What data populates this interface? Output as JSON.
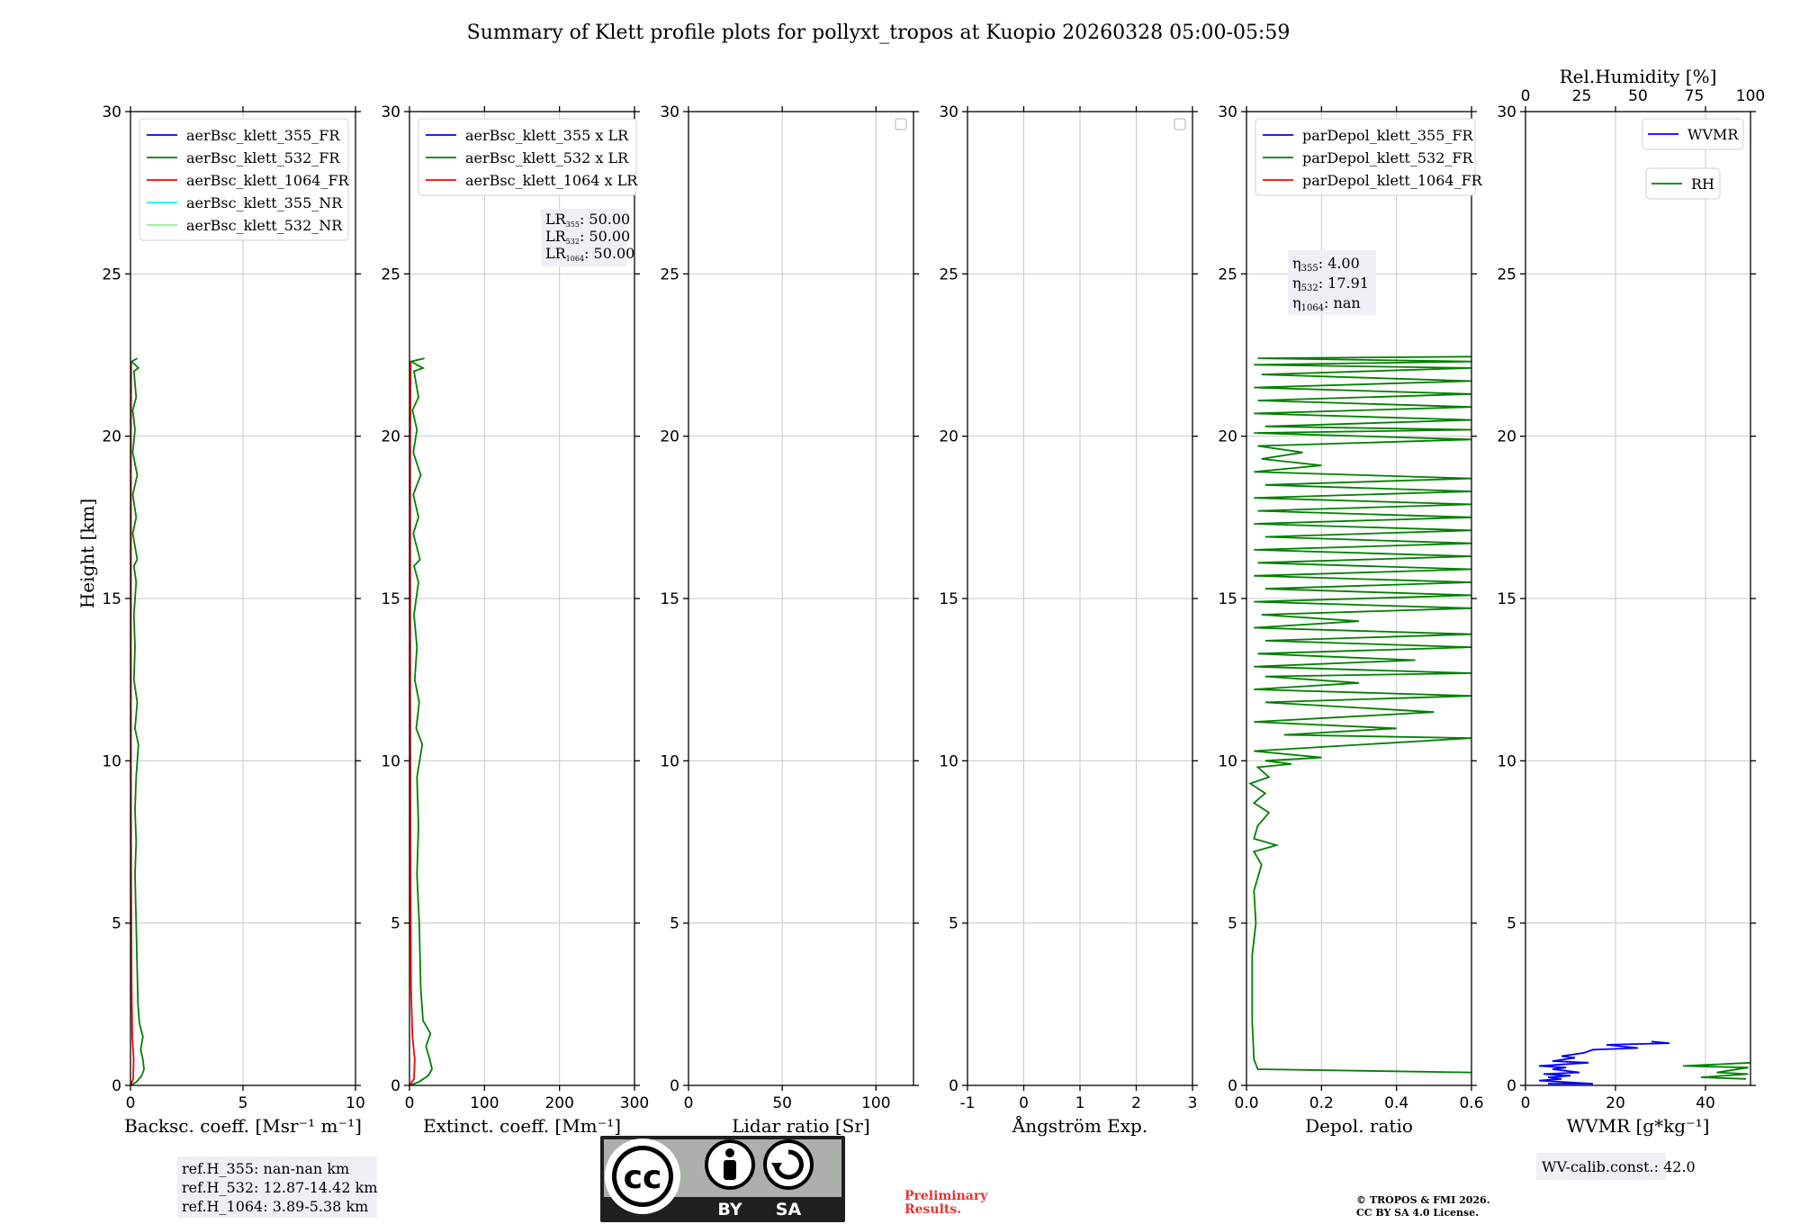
{
  "title": "Summary of Klett profile plots for pollyxt_tropos at Kuopio 20260328 05:00-05:59",
  "shared_ylabel": "Height [km]",
  "chart_data": [
    {
      "type": "line",
      "id": "backscatter",
      "xlabel": "Backsc. coeff. [Msr⁻¹ m⁻¹]",
      "xlim": [
        0,
        10
      ],
      "xticks": [
        0,
        5,
        10
      ],
      "ylim": [
        0,
        30
      ],
      "yticks": [
        0,
        5,
        10,
        15,
        20,
        25,
        30
      ],
      "legend": [
        "aerBsc_klett_355_FR",
        "aerBsc_klett_532_FR",
        "aerBsc_klett_1064_FR",
        "aerBsc_klett_355_NR",
        "aerBsc_klett_532_NR"
      ],
      "legend_colors": [
        "#0000ff",
        "#008000",
        "#ff0000",
        "#00ffff",
        "#90ee90"
      ],
      "series": [
        {
          "name": "aerBsc_klett_532_FR",
          "color": "#008000",
          "points": [
            [
              0.0,
              0.0
            ],
            [
              0.25,
              0.1
            ],
            [
              0.5,
              0.3
            ],
            [
              0.6,
              0.5
            ],
            [
              0.55,
              0.8
            ],
            [
              0.45,
              1.1
            ],
            [
              0.55,
              1.5
            ],
            [
              0.4,
              1.9
            ],
            [
              0.33,
              2.5
            ],
            [
              0.3,
              3.5
            ],
            [
              0.25,
              5.0
            ],
            [
              0.2,
              6.5
            ],
            [
              0.25,
              7.5
            ],
            [
              0.2,
              8.5
            ],
            [
              0.25,
              9.5
            ],
            [
              0.35,
              10.5
            ],
            [
              0.2,
              11.0
            ],
            [
              0.3,
              11.8
            ],
            [
              0.15,
              12.5
            ],
            [
              0.2,
              13.5
            ],
            [
              0.15,
              14.5
            ],
            [
              0.25,
              15.5
            ],
            [
              0.15,
              16.0
            ],
            [
              0.3,
              16.2
            ],
            [
              0.1,
              17.0
            ],
            [
              0.25,
              17.5
            ],
            [
              0.1,
              18.2
            ],
            [
              0.3,
              18.8
            ],
            [
              0.1,
              19.5
            ],
            [
              0.2,
              20.2
            ],
            [
              0.1,
              20.8
            ],
            [
              0.25,
              21.2
            ],
            [
              0.15,
              22.0
            ],
            [
              0.35,
              22.1
            ],
            [
              0.05,
              22.3
            ],
            [
              0.3,
              22.4
            ]
          ]
        },
        {
          "name": "aerBsc_klett_1064_FR",
          "color": "#ff0000",
          "points": [
            [
              0.0,
              0.0
            ],
            [
              0.12,
              0.2
            ],
            [
              0.14,
              0.8
            ],
            [
              0.08,
              1.5
            ],
            [
              0.05,
              3.0
            ],
            [
              0.03,
              6.0
            ],
            [
              0.02,
              10.0
            ],
            [
              0.02,
              15.0
            ],
            [
              0.02,
              20.0
            ],
            [
              0.03,
              22.3
            ]
          ]
        }
      ],
      "annotation": [
        "ref.H_355: nan-nan km",
        "ref.H_532: 12.87-14.42 km",
        "ref.H_1064: 3.89-5.38 km"
      ]
    },
    {
      "type": "line",
      "id": "extinction",
      "xlabel": "Extinct. coeff. [Mm⁻¹]",
      "xlim": [
        0,
        300
      ],
      "xticks": [
        0,
        100,
        200,
        300
      ],
      "ylim": [
        0,
        30
      ],
      "yticks": [
        0,
        5,
        10,
        15,
        20,
        25,
        30
      ],
      "legend": [
        "aerBsc_klett_355 x LR",
        "aerBsc_klett_532 x LR",
        "aerBsc_klett_1064 x LR"
      ],
      "legend_colors": [
        "#0000ff",
        "#008000",
        "#ff0000"
      ],
      "series": [
        {
          "name": "aerBsc_klett_532 x LR",
          "color": "#008000",
          "points": [
            [
              0,
              0.0
            ],
            [
              12,
              0.1
            ],
            [
              25,
              0.3
            ],
            [
              30,
              0.5
            ],
            [
              27,
              0.8
            ],
            [
              22,
              1.2
            ],
            [
              28,
              1.6
            ],
            [
              18,
              2.0
            ],
            [
              15,
              3.0
            ],
            [
              13,
              5.0
            ],
            [
              10,
              6.5
            ],
            [
              12,
              8.0
            ],
            [
              10,
              9.5
            ],
            [
              17,
              10.5
            ],
            [
              9,
              11.0
            ],
            [
              13,
              11.8
            ],
            [
              7,
              12.5
            ],
            [
              10,
              13.5
            ],
            [
              6,
              14.5
            ],
            [
              12,
              15.5
            ],
            [
              6,
              16.0
            ],
            [
              14,
              16.2
            ],
            [
              5,
              17.0
            ],
            [
              12,
              17.5
            ],
            [
              5,
              18.2
            ],
            [
              15,
              18.8
            ],
            [
              5,
              19.5
            ],
            [
              10,
              20.2
            ],
            [
              4,
              20.8
            ],
            [
              12,
              21.2
            ],
            [
              6,
              22.0
            ],
            [
              18,
              22.1
            ],
            [
              2,
              22.3
            ],
            [
              20,
              22.4
            ]
          ]
        },
        {
          "name": "aerBsc_klett_1064 x LR",
          "color": "#ff0000",
          "points": [
            [
              0,
              0.0
            ],
            [
              6,
              0.2
            ],
            [
              7,
              0.8
            ],
            [
              4,
              1.5
            ],
            [
              2,
              3.0
            ],
            [
              1.5,
              6.0
            ],
            [
              1,
              12.0
            ],
            [
              1,
              20.0
            ],
            [
              1.5,
              22.3
            ]
          ]
        }
      ],
      "annotation": [
        {
          "label": "LR",
          "sub": "355",
          "value": ": 50.00"
        },
        {
          "label": "LR",
          "sub": "532",
          "value": ": 50.00"
        },
        {
          "label": "LR",
          "sub": "1064",
          "value": ": 50.00"
        }
      ]
    },
    {
      "type": "line",
      "id": "lidar_ratio",
      "xlabel": "Lidar ratio [Sr]",
      "xlim": [
        0,
        120
      ],
      "xticks": [
        0,
        50,
        100
      ],
      "ylim": [
        0,
        30
      ],
      "yticks": [
        0,
        5,
        10,
        15,
        20,
        25,
        30
      ],
      "series": []
    },
    {
      "type": "line",
      "id": "angstrom",
      "xlabel": "Ångström Exp.",
      "xlim": [
        -1,
        3
      ],
      "xticks": [
        -1,
        0,
        1,
        2,
        3
      ],
      "ylim": [
        0,
        30
      ],
      "yticks": [
        0,
        5,
        10,
        15,
        20,
        25,
        30
      ],
      "series": []
    },
    {
      "type": "line",
      "id": "depol",
      "xlabel": "Depol. ratio",
      "xlim": [
        0,
        0.6
      ],
      "xticks": [
        0.0,
        0.2,
        0.4,
        0.6
      ],
      "xtick_decimals": 1,
      "ylim": [
        0,
        30
      ],
      "yticks": [
        0,
        5,
        10,
        15,
        20,
        25,
        30
      ],
      "legend": [
        "parDepol_klett_355_FR",
        "parDepol_klett_532_FR",
        "parDepol_klett_1064_FR"
      ],
      "legend_colors": [
        "#0000ff",
        "#008000",
        "#ff0000"
      ],
      "series": [
        {
          "name": "parDepol_klett_532_FR",
          "color": "#008000",
          "points": [
            [
              0.6,
              0.4
            ],
            [
              0.03,
              0.5
            ],
            [
              0.02,
              0.8
            ],
            [
              0.015,
              2.0
            ],
            [
              0.015,
              4.0
            ],
            [
              0.025,
              5.0
            ],
            [
              0.02,
              6.0
            ],
            [
              0.04,
              6.8
            ],
            [
              0.02,
              7.2
            ],
            [
              0.08,
              7.4
            ],
            [
              0.02,
              7.6
            ],
            [
              0.03,
              8.0
            ],
            [
              0.06,
              8.4
            ],
            [
              0.02,
              8.7
            ],
            [
              0.05,
              9.0
            ],
            [
              0.01,
              9.3
            ],
            [
              0.06,
              9.5
            ],
            [
              0.03,
              9.8
            ],
            [
              0.12,
              9.9
            ],
            [
              0.05,
              10.0
            ],
            [
              0.2,
              10.1
            ],
            [
              0.02,
              10.3
            ],
            [
              0.6,
              10.7
            ],
            [
              0.1,
              10.8
            ],
            [
              0.4,
              11.0
            ],
            [
              0.02,
              11.2
            ],
            [
              0.5,
              11.5
            ],
            [
              0.05,
              11.8
            ],
            [
              0.6,
              12.0
            ],
            [
              0.02,
              12.2
            ],
            [
              0.3,
              12.4
            ],
            [
              0.05,
              12.6
            ],
            [
              0.6,
              12.7
            ],
            [
              0.02,
              12.9
            ],
            [
              0.45,
              13.1
            ],
            [
              0.03,
              13.3
            ],
            [
              0.6,
              13.5
            ],
            [
              0.05,
              13.7
            ],
            [
              0.6,
              13.9
            ],
            [
              0.02,
              14.1
            ],
            [
              0.3,
              14.3
            ],
            [
              0.04,
              14.5
            ],
            [
              0.6,
              14.7
            ],
            [
              0.02,
              14.9
            ],
            [
              0.6,
              15.1
            ],
            [
              0.05,
              15.3
            ],
            [
              0.6,
              15.5
            ],
            [
              0.02,
              15.7
            ],
            [
              0.6,
              15.9
            ],
            [
              0.03,
              16.1
            ],
            [
              0.6,
              16.3
            ],
            [
              0.02,
              16.5
            ],
            [
              0.6,
              16.7
            ],
            [
              0.05,
              16.9
            ],
            [
              0.6,
              17.1
            ],
            [
              0.02,
              17.3
            ],
            [
              0.6,
              17.5
            ],
            [
              0.03,
              17.7
            ],
            [
              0.6,
              17.9
            ],
            [
              0.02,
              18.1
            ],
            [
              0.6,
              18.3
            ],
            [
              0.05,
              18.5
            ],
            [
              0.6,
              18.7
            ],
            [
              0.02,
              18.9
            ],
            [
              0.2,
              19.1
            ],
            [
              0.04,
              19.3
            ],
            [
              0.15,
              19.5
            ],
            [
              0.03,
              19.7
            ],
            [
              0.6,
              19.9
            ],
            [
              0.02,
              20.1
            ],
            [
              0.6,
              20.2
            ],
            [
              0.05,
              20.3
            ],
            [
              0.6,
              20.5
            ],
            [
              0.02,
              20.7
            ],
            [
              0.6,
              20.9
            ],
            [
              0.03,
              21.1
            ],
            [
              0.6,
              21.3
            ],
            [
              0.02,
              21.5
            ],
            [
              0.6,
              21.7
            ],
            [
              0.04,
              21.9
            ],
            [
              0.6,
              22.1
            ],
            [
              0.02,
              22.2
            ],
            [
              0.6,
              22.3
            ],
            [
              0.03,
              22.4
            ],
            [
              0.6,
              22.45
            ]
          ]
        }
      ],
      "annotation": [
        {
          "label": "η",
          "sub": "355",
          "value": ": 4.00"
        },
        {
          "label": "η",
          "sub": "532",
          "value": ": 17.91"
        },
        {
          "label": "η",
          "sub": "1064",
          "value": ": nan"
        }
      ]
    },
    {
      "type": "line",
      "id": "wvmr",
      "xlabel": "WVMR [g*kg⁻¹]",
      "xlim": [
        0,
        50
      ],
      "xticks": [
        0,
        20,
        40
      ],
      "top_xlabel": "Rel.Humidity [%]",
      "top_xlim": [
        0,
        100
      ],
      "top_xticks": [
        0,
        25,
        50,
        75,
        100
      ],
      "ylim": [
        0,
        30
      ],
      "yticks": [
        0,
        5,
        10,
        15,
        20,
        25,
        30
      ],
      "legend": [
        "WVMR",
        "RH"
      ],
      "legend_colors": [
        "#0000ff",
        "#008000"
      ],
      "series": [
        {
          "name": "WVMR",
          "color": "#0000ff",
          "points": [
            [
              5,
              0.05
            ],
            [
              15,
              0.05
            ],
            [
              3,
              0.15
            ],
            [
              8,
              0.2
            ],
            [
              5,
              0.25
            ],
            [
              10,
              0.3
            ],
            [
              4,
              0.35
            ],
            [
              12,
              0.4
            ],
            [
              6,
              0.5
            ],
            [
              9,
              0.55
            ],
            [
              3,
              0.6
            ],
            [
              14,
              0.7
            ],
            [
              6,
              0.75
            ],
            [
              11,
              0.85
            ],
            [
              8,
              0.9
            ],
            [
              13,
              1.0
            ],
            [
              15,
              1.1
            ],
            [
              25,
              1.15
            ],
            [
              18,
              1.25
            ],
            [
              32,
              1.3
            ],
            [
              28,
              1.35
            ]
          ]
        },
        {
          "name": "RH",
          "color": "#008000",
          "points": [
            [
              98,
              0.2
            ],
            [
              78,
              0.25
            ],
            [
              99,
              0.35
            ],
            [
              85,
              0.4
            ],
            [
              99,
              0.55
            ],
            [
              70,
              0.6
            ],
            [
              100,
              0.7
            ]
          ]
        }
      ],
      "annotation": [
        "WV-calib.const.: 42.0"
      ]
    }
  ],
  "footer": {
    "license_badge": [
      "cc",
      "BY",
      "SA"
    ],
    "preliminary": [
      "Preliminary",
      "Results."
    ],
    "copyright": [
      "© TROPOS & FMI 2026.",
      "CC BY SA 4.0 License."
    ]
  }
}
